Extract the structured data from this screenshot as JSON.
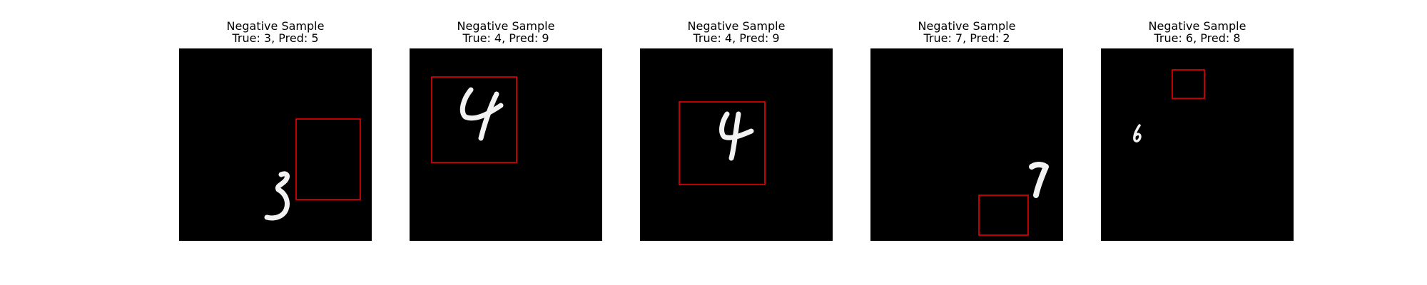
{
  "panels": [
    {
      "title": "Negative Sample",
      "subtitle": "True: 3, Pred: 5",
      "digit": "3",
      "box_color": "#ff0000"
    },
    {
      "title": "Negative Sample",
      "subtitle": "True: 4, Pred: 9",
      "digit": "4",
      "box_color": "#ff0000"
    },
    {
      "title": "Negative Sample",
      "subtitle": "True: 4, Pred: 9",
      "digit": "4",
      "box_color": "#ff0000"
    },
    {
      "title": "Negative Sample",
      "subtitle": "True: 7, Pred: 2",
      "digit": "7",
      "box_color": "#ff0000"
    },
    {
      "title": "Negative Sample",
      "subtitle": "True: 6, Pred: 8",
      "digit": "6",
      "box_color": "#ff0000"
    }
  ]
}
